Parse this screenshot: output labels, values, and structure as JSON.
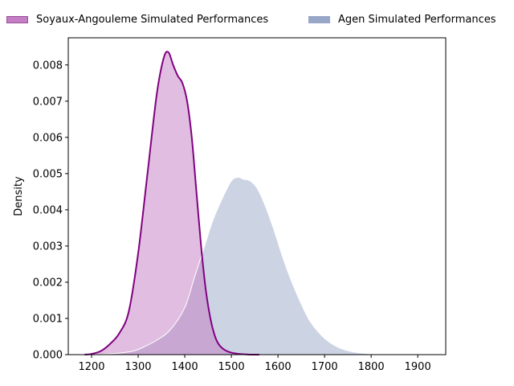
{
  "chart_data": {
    "type": "area",
    "xlabel": "",
    "ylabel": "Density",
    "xlim": [
      1150,
      1960
    ],
    "ylim": [
      0,
      0.00875
    ],
    "xticks": [
      1200,
      1300,
      1400,
      1500,
      1600,
      1700,
      1800,
      1900
    ],
    "yticks": [
      0.0,
      0.001,
      0.002,
      0.003,
      0.004,
      0.005,
      0.006,
      0.007,
      0.008
    ],
    "xtick_labels": [
      "1200",
      "1300",
      "1400",
      "1500",
      "1600",
      "1700",
      "1800",
      "1900"
    ],
    "ytick_labels": [
      "0.000",
      "0.001",
      "0.002",
      "0.003",
      "0.004",
      "0.005",
      "0.006",
      "0.007",
      "0.008"
    ],
    "legend_position": "top-center",
    "grid": false,
    "series": [
      {
        "name": "Soyaux-Angouleme Simulated Performances",
        "fill_color": "#c47ec4",
        "fill_opacity": 0.5,
        "line_color": "#800080",
        "x": [
          1185,
          1200,
          1220,
          1240,
          1260,
          1280,
          1300,
          1320,
          1340,
          1355,
          1365,
          1375,
          1385,
          1395,
          1405,
          1415,
          1425,
          1435,
          1445,
          1455,
          1465,
          1475,
          1490,
          1510,
          1540,
          1560
        ],
        "y": [
          0.0,
          2e-05,
          0.0001,
          0.0003,
          0.0006,
          0.0012,
          0.0028,
          0.005,
          0.0072,
          0.0082,
          0.00835,
          0.008,
          0.0077,
          0.0075,
          0.007,
          0.006,
          0.0045,
          0.003,
          0.0018,
          0.001,
          0.0005,
          0.00025,
          0.0001,
          3e-05,
          0.0,
          0.0
        ]
      },
      {
        "name": "Agen Simulated Performances",
        "fill_color": "#8e9dc2",
        "fill_opacity": 0.45,
        "line_color": "#ffffff",
        "x": [
          1200,
          1250,
          1290,
          1310,
          1340,
          1370,
          1400,
          1420,
          1440,
          1460,
          1480,
          1500,
          1515,
          1525,
          1540,
          1555,
          1570,
          1590,
          1610,
          1630,
          1650,
          1670,
          1700,
          1730,
          1760,
          1790,
          1830,
          1860,
          1900
        ],
        "y": [
          0.0,
          3e-05,
          0.0001,
          0.0002,
          0.0004,
          0.0007,
          0.0013,
          0.0021,
          0.0029,
          0.0037,
          0.0043,
          0.0048,
          0.0049,
          0.00485,
          0.0048,
          0.0046,
          0.0042,
          0.0035,
          0.0027,
          0.002,
          0.0014,
          0.0009,
          0.00045,
          0.0002,
          8e-05,
          3e-05,
          1e-05,
          0.0,
          0.0
        ]
      }
    ]
  },
  "legend": {
    "items": [
      {
        "label": "Soyaux-Angouleme Simulated Performances",
        "swatch_fill": "#c47ec4",
        "swatch_border": "#9b4f9b"
      },
      {
        "label": "Agen Simulated Performances",
        "swatch_fill": "#98a6c8",
        "swatch_border": "#98a6c8"
      }
    ]
  }
}
